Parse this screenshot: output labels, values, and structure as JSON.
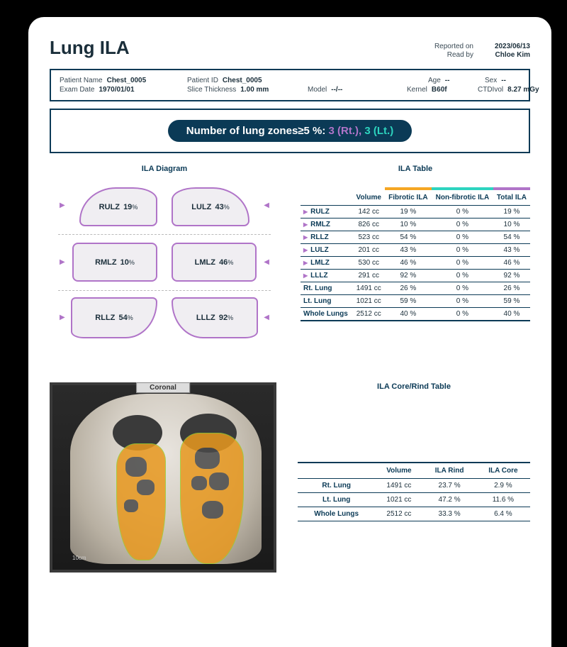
{
  "title": "Lung ILA",
  "meta": {
    "reported_label": "Reported on",
    "reported_value": "2023/06/13",
    "readby_label": "Read by",
    "readby_value": "Chloe Kim"
  },
  "info": {
    "patient_name_label": "Patient Name",
    "patient_name": "Chest_0005",
    "patient_id_label": "Patient ID",
    "patient_id": "Chest_0005",
    "age_label": "Age",
    "age": "--",
    "sex_label": "Sex",
    "sex": "--",
    "exam_date_label": "Exam Date",
    "exam_date": "1970/01/01",
    "slice_label": "Slice Thickness",
    "slice": "1.00 mm",
    "model_label": "Model",
    "model": "--/--",
    "kernel_label": "Kernel",
    "kernel": "B60f",
    "ctdi_label": "CTDIvol",
    "ctdi": "8.27 mGy"
  },
  "zones": {
    "prefix": "Number of lung zones≥5 %: ",
    "rt_count": "3",
    "rt_label": " (Rt.), ",
    "lt_count": "3",
    "lt_label": " (Lt.)"
  },
  "diagram": {
    "title": "ILA Diagram",
    "rulz_name": "RULZ",
    "rulz_pct": "19",
    "lulz_name": "LULZ",
    "lulz_pct": "43",
    "rmlz_name": "RMLZ",
    "rmlz_pct": "10",
    "lmlz_name": "LMLZ",
    "lmlz_pct": "46",
    "rllz_name": "RLLZ",
    "rllz_pct": "54",
    "lllz_name": "LLLZ",
    "lllz_pct": "92",
    "pct_unit": "%",
    "lobe_border_color": "#b074c8",
    "lobe_fill_color": "#f0eef2"
  },
  "table": {
    "title": "ILA Table",
    "headers": {
      "volume": "Volume",
      "fibrotic": "Fibrotic ILA",
      "nonfibrotic": "Non-fibrotic ILA",
      "total": "Total ILA"
    },
    "header_bar_colors": {
      "fibrotic": "#f5a623",
      "nonfibrotic": "#2dd4bf",
      "total": "#b074c8"
    },
    "rows": [
      {
        "zone": "RULZ",
        "vol": "142 cc",
        "fib": "19 %",
        "non": "0 %",
        "tot": "19 %",
        "tri": true
      },
      {
        "zone": "RMLZ",
        "vol": "826 cc",
        "fib": "10 %",
        "non": "0 %",
        "tot": "10 %",
        "tri": true
      },
      {
        "zone": "RLLZ",
        "vol": "523 cc",
        "fib": "54 %",
        "non": "0 %",
        "tot": "54 %",
        "tri": true
      },
      {
        "zone": "LULZ",
        "vol": "201 cc",
        "fib": "43 %",
        "non": "0 %",
        "tot": "43 %",
        "tri": true
      },
      {
        "zone": "LMLZ",
        "vol": "530 cc",
        "fib": "46 %",
        "non": "0 %",
        "tot": "46 %",
        "tri": true
      },
      {
        "zone": "LLLZ",
        "vol": "291 cc",
        "fib": "92 %",
        "non": "0 %",
        "tot": "92 %",
        "tri": true
      },
      {
        "zone": "Rt. Lung",
        "vol": "1491 cc",
        "fib": "26 %",
        "non": "0 %",
        "tot": "26 %",
        "tri": false
      },
      {
        "zone": "Lt. Lung",
        "vol": "1021 cc",
        "fib": "59 %",
        "non": "0 %",
        "tot": "59 %",
        "tri": false
      },
      {
        "zone": "Whole Lungs",
        "vol": "2512 cc",
        "fib": "40 %",
        "non": "0 %",
        "tot": "40 %",
        "tri": false
      }
    ]
  },
  "coronal": {
    "label": "Coronal",
    "scale": "10cm",
    "overlay_color": "#e8981e",
    "outline_color": "#9acd32"
  },
  "core_rind": {
    "title": "ILA Core/Rind Table",
    "headers": {
      "volume": "Volume",
      "rind": "ILA Rind",
      "core": "ILA Core"
    },
    "rows": [
      {
        "zone": "Rt. Lung",
        "vol": "1491 cc",
        "rind": "23.7 %",
        "core": "2.9 %"
      },
      {
        "zone": "Lt. Lung",
        "vol": "1021 cc",
        "rind": "47.2 %",
        "core": "11.6 %"
      },
      {
        "zone": "Whole Lungs",
        "vol": "2512 cc",
        "rind": "33.3 %",
        "core": "6.4 %"
      }
    ]
  }
}
